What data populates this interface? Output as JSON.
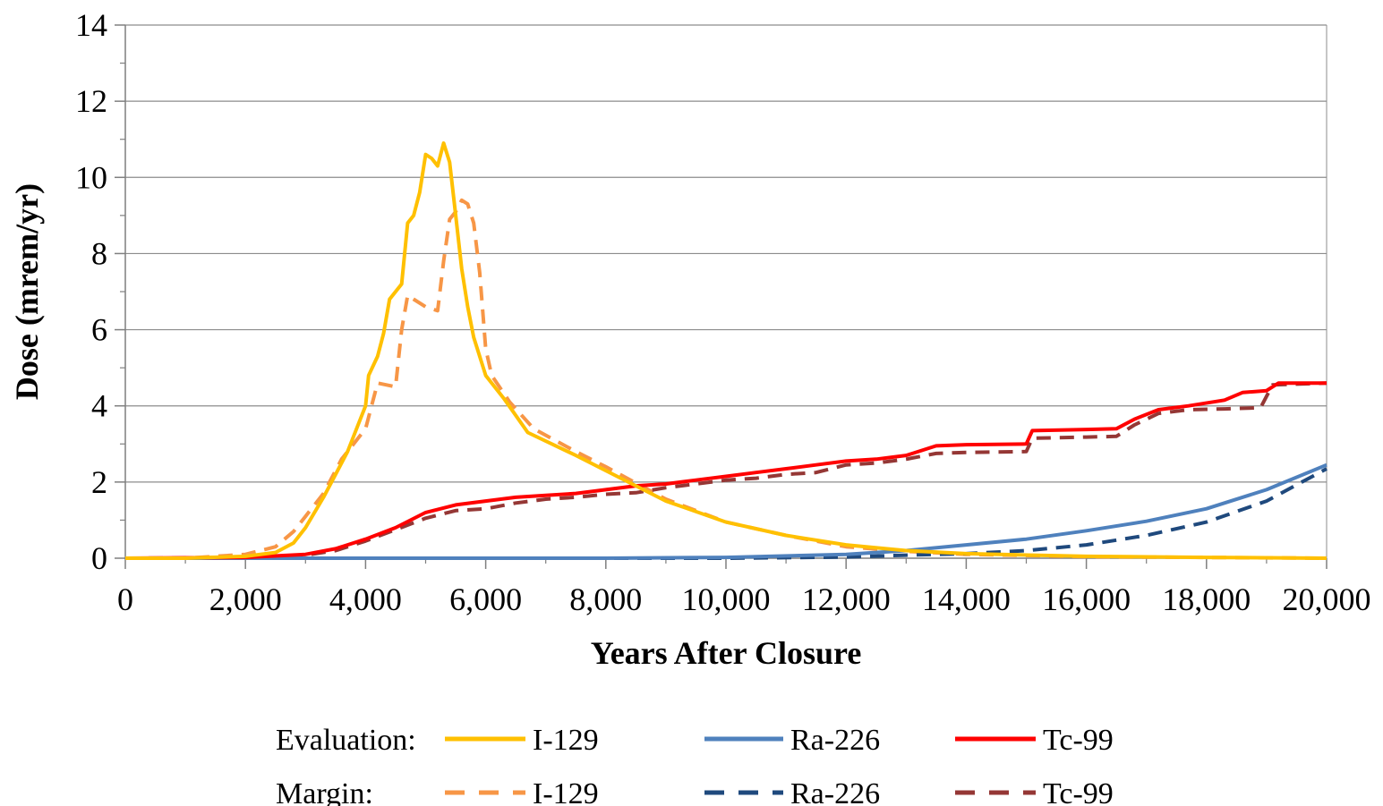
{
  "chart_data": {
    "type": "line",
    "title": "",
    "xlabel": "Years After Closure",
    "ylabel": "Dose (mrem/yr)",
    "xlim": [
      0,
      20000
    ],
    "ylim": [
      0,
      14
    ],
    "x_ticks": [
      0,
      2000,
      4000,
      6000,
      8000,
      10000,
      12000,
      14000,
      16000,
      18000,
      20000
    ],
    "x_tick_labels": [
      "0",
      "2,000",
      "4,000",
      "6,000",
      "8,000",
      "10,000",
      "12,000",
      "14,000",
      "16,000",
      "18,000",
      "20,000"
    ],
    "y_ticks": [
      0,
      2,
      4,
      6,
      8,
      10,
      12,
      14
    ],
    "y_tick_labels": [
      "0",
      "2",
      "4",
      "6",
      "8",
      "10",
      "12",
      "14"
    ],
    "grid": "horizontal",
    "legend_position": "bottom",
    "legend": {
      "groups": [
        {
          "label": "Evaluation:",
          "style": "solid",
          "entries": [
            "I-129",
            "Ra-226",
            "Tc-99"
          ]
        },
        {
          "label": "Margin:",
          "style": "dashed",
          "entries": [
            "I-129",
            "Ra-226",
            "Tc-99"
          ]
        }
      ]
    },
    "series": [
      {
        "name": "I-129",
        "group": "Evaluation",
        "style": "solid",
        "color": "#FFC000",
        "points": [
          [
            0,
            0
          ],
          [
            1000,
            0
          ],
          [
            2000,
            0.05
          ],
          [
            2500,
            0.15
          ],
          [
            2800,
            0.4
          ],
          [
            3000,
            0.8
          ],
          [
            3300,
            1.6
          ],
          [
            3500,
            2.2
          ],
          [
            3700,
            2.8
          ],
          [
            3900,
            3.6
          ],
          [
            4000,
            4.0
          ],
          [
            4050,
            4.8
          ],
          [
            4200,
            5.3
          ],
          [
            4300,
            5.9
          ],
          [
            4400,
            6.8
          ],
          [
            4600,
            7.2
          ],
          [
            4700,
            8.8
          ],
          [
            4800,
            9.0
          ],
          [
            4900,
            9.6
          ],
          [
            5000,
            10.6
          ],
          [
            5100,
            10.5
          ],
          [
            5200,
            10.3
          ],
          [
            5300,
            10.9
          ],
          [
            5400,
            10.4
          ],
          [
            5500,
            9.0
          ],
          [
            5600,
            7.6
          ],
          [
            5700,
            6.6
          ],
          [
            5800,
            5.8
          ],
          [
            6000,
            4.8
          ],
          [
            6300,
            4.2
          ],
          [
            6700,
            3.3
          ],
          [
            7500,
            2.7
          ],
          [
            8000,
            2.3
          ],
          [
            9000,
            1.5
          ],
          [
            10000,
            0.95
          ],
          [
            11000,
            0.6
          ],
          [
            12000,
            0.35
          ],
          [
            13000,
            0.2
          ],
          [
            14000,
            0.12
          ],
          [
            16000,
            0.05
          ],
          [
            18000,
            0.02
          ],
          [
            20000,
            0.0
          ]
        ]
      },
      {
        "name": "Ra-226",
        "group": "Evaluation",
        "style": "solid",
        "color": "#4F81BD",
        "points": [
          [
            0,
            0
          ],
          [
            8000,
            0
          ],
          [
            10000,
            0.02
          ],
          [
            12000,
            0.1
          ],
          [
            13000,
            0.2
          ],
          [
            14000,
            0.35
          ],
          [
            15000,
            0.5
          ],
          [
            16000,
            0.72
          ],
          [
            17000,
            0.97
          ],
          [
            18000,
            1.3
          ],
          [
            19000,
            1.8
          ],
          [
            20000,
            2.45
          ]
        ]
      },
      {
        "name": "Tc-99",
        "group": "Evaluation",
        "style": "solid",
        "color": "#FF0000",
        "points": [
          [
            0,
            0
          ],
          [
            2000,
            0.02
          ],
          [
            3000,
            0.1
          ],
          [
            3500,
            0.25
          ],
          [
            4000,
            0.5
          ],
          [
            4500,
            0.8
          ],
          [
            5000,
            1.2
          ],
          [
            5500,
            1.4
          ],
          [
            6000,
            1.5
          ],
          [
            6500,
            1.6
          ],
          [
            7000,
            1.65
          ],
          [
            7500,
            1.7
          ],
          [
            8000,
            1.8
          ],
          [
            8500,
            1.9
          ],
          [
            9000,
            1.95
          ],
          [
            9500,
            2.05
          ],
          [
            10000,
            2.15
          ],
          [
            10500,
            2.25
          ],
          [
            11000,
            2.35
          ],
          [
            11500,
            2.45
          ],
          [
            12000,
            2.55
          ],
          [
            12500,
            2.6
          ],
          [
            13000,
            2.7
          ],
          [
            13500,
            2.95
          ],
          [
            14000,
            2.98
          ],
          [
            15000,
            3.0
          ],
          [
            15100,
            3.35
          ],
          [
            16000,
            3.38
          ],
          [
            16500,
            3.4
          ],
          [
            16800,
            3.65
          ],
          [
            17200,
            3.9
          ],
          [
            17700,
            4.0
          ],
          [
            18300,
            4.15
          ],
          [
            18600,
            4.35
          ],
          [
            19000,
            4.4
          ],
          [
            19200,
            4.6
          ],
          [
            20000,
            4.6
          ]
        ]
      },
      {
        "name": "I-129",
        "group": "Margin",
        "style": "dashed",
        "color": "#F79646",
        "points": [
          [
            0,
            0
          ],
          [
            1000,
            0
          ],
          [
            1500,
            0.05
          ],
          [
            2000,
            0.1
          ],
          [
            2500,
            0.3
          ],
          [
            2800,
            0.7
          ],
          [
            3000,
            1.1
          ],
          [
            3300,
            1.7
          ],
          [
            3600,
            2.6
          ],
          [
            3900,
            3.2
          ],
          [
            4000,
            3.4
          ],
          [
            4100,
            4.0
          ],
          [
            4200,
            4.6
          ],
          [
            4500,
            4.5
          ],
          [
            4600,
            6.0
          ],
          [
            4700,
            6.9
          ],
          [
            4800,
            6.8
          ],
          [
            5000,
            6.6
          ],
          [
            5200,
            6.5
          ],
          [
            5300,
            7.8
          ],
          [
            5400,
            8.9
          ],
          [
            5500,
            9.1
          ],
          [
            5600,
            9.4
          ],
          [
            5700,
            9.3
          ],
          [
            5800,
            8.8
          ],
          [
            5900,
            7.5
          ],
          [
            6000,
            5.5
          ],
          [
            6100,
            4.8
          ],
          [
            6400,
            4.1
          ],
          [
            6800,
            3.4
          ],
          [
            7500,
            2.8
          ],
          [
            8000,
            2.4
          ],
          [
            9000,
            1.55
          ],
          [
            10000,
            0.95
          ],
          [
            11000,
            0.6
          ],
          [
            12000,
            0.3
          ],
          [
            13000,
            0.18
          ],
          [
            14000,
            0.1
          ],
          [
            16000,
            0.04
          ],
          [
            20000,
            0.0
          ]
        ]
      },
      {
        "name": "Ra-226",
        "group": "Margin",
        "style": "dashed",
        "color": "#1F497D",
        "points": [
          [
            0,
            0
          ],
          [
            10000,
            0
          ],
          [
            12000,
            0.03
          ],
          [
            13000,
            0.08
          ],
          [
            14000,
            0.12
          ],
          [
            15000,
            0.2
          ],
          [
            16000,
            0.35
          ],
          [
            17000,
            0.6
          ],
          [
            18000,
            0.95
          ],
          [
            19000,
            1.5
          ],
          [
            20000,
            2.35
          ]
        ]
      },
      {
        "name": "Tc-99",
        "group": "Margin",
        "style": "dashed",
        "color": "#953735",
        "points": [
          [
            0,
            0
          ],
          [
            2000,
            0.01
          ],
          [
            3000,
            0.08
          ],
          [
            3500,
            0.2
          ],
          [
            4000,
            0.45
          ],
          [
            4500,
            0.75
          ],
          [
            5000,
            1.05
          ],
          [
            5500,
            1.25
          ],
          [
            6000,
            1.3
          ],
          [
            6500,
            1.45
          ],
          [
            7000,
            1.55
          ],
          [
            7500,
            1.6
          ],
          [
            8000,
            1.68
          ],
          [
            8500,
            1.72
          ],
          [
            9000,
            1.85
          ],
          [
            9500,
            1.95
          ],
          [
            10000,
            2.05
          ],
          [
            10500,
            2.1
          ],
          [
            11000,
            2.2
          ],
          [
            11500,
            2.25
          ],
          [
            12000,
            2.45
          ],
          [
            12500,
            2.5
          ],
          [
            13000,
            2.6
          ],
          [
            13500,
            2.75
          ],
          [
            14000,
            2.78
          ],
          [
            15000,
            2.8
          ],
          [
            15100,
            3.15
          ],
          [
            16000,
            3.18
          ],
          [
            16500,
            3.2
          ],
          [
            16800,
            3.5
          ],
          [
            17200,
            3.8
          ],
          [
            17700,
            3.9
          ],
          [
            18300,
            3.92
          ],
          [
            18900,
            3.95
          ],
          [
            19100,
            4.55
          ],
          [
            20000,
            4.6
          ]
        ]
      }
    ]
  }
}
